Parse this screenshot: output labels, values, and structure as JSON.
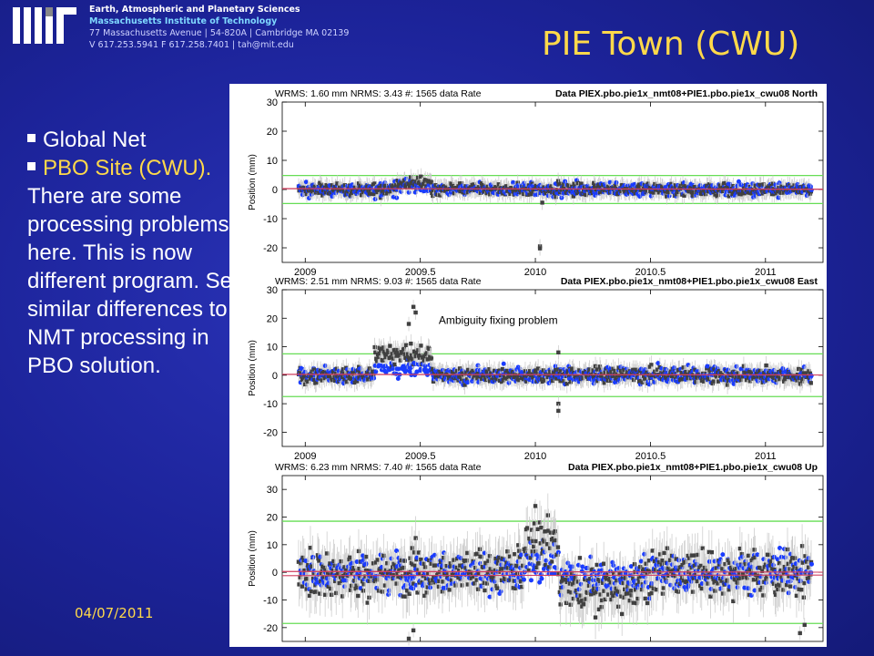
{
  "header": {
    "department": "Earth, Atmospheric and Planetary Sciences",
    "institute": "Massachusetts Institute of Technology",
    "address": "77 Massachusetts Avenue | 54-820A | Cambridge MA 02139",
    "contact": "V 617.253.5941 F 617.258.7401 | tah@mit.edu"
  },
  "slide": {
    "title": "PIE Town (CWU)",
    "date": "04/07/2011",
    "bullets": [
      {
        "lead": "Global Net",
        "rest": ""
      },
      {
        "lead": "PBO Site (CWU).",
        "rest": " There are some processing problems here. This is now different program. See similar differences to NMT processing in PBO solution."
      }
    ]
  },
  "colors": {
    "background": "#1c2399",
    "title": "#ffd94a",
    "series_a": "#404040",
    "series_b": "#1a3cff",
    "bounds": "#66dd55",
    "fit": "#d04060",
    "errorbar": "#c8c8c8"
  },
  "chart_data": [
    {
      "type": "scatter",
      "component": "North",
      "stats": "WRMS:   1.60 mm NRMS:  3.43 #:  1565 data  Rate",
      "title": "Data PIEX.pbo.pie1x_nmt08+PIE1.pbo.pie1x_cwu08 North",
      "ylabel": "Position (mm)",
      "xlim": [
        2008.9,
        2011.25
      ],
      "ylim": [
        -25,
        30
      ],
      "xticks": [
        2009,
        2009.5,
        2010,
        2010.5,
        2011
      ],
      "xtick_labels": [
        "2009",
        "2009.5",
        "2010",
        "2010.5",
        "2011"
      ],
      "yticks": [
        -20,
        -10,
        0,
        10,
        20,
        30
      ],
      "bounds": [
        -4.8,
        4.8
      ],
      "noise": [
        1.4,
        1.6
      ],
      "outliers": [
        {
          "x": 2010.02,
          "y": -19.5
        },
        {
          "x": 2010.02,
          "y": -20.2
        },
        {
          "x": 2010.03,
          "y": -4.5
        }
      ],
      "bumps": [
        {
          "x0": 2009.4,
          "x1": 2009.55,
          "dy": 2.5
        }
      ],
      "annotation": ""
    },
    {
      "type": "scatter",
      "component": "East",
      "stats": "WRMS:   2.51 mm NRMS:  9.03 #:  1565 data  Rate",
      "title": "Data PIEX.pbo.pie1x_nmt08+PIE1.pbo.pie1x_cwu08 East",
      "ylabel": "Position (mm)",
      "xlim": [
        2008.9,
        2011.25
      ],
      "ylim": [
        -25,
        30
      ],
      "xticks": [
        2009,
        2009.5,
        2010,
        2010.5,
        2011
      ],
      "xtick_labels": [
        "2009",
        "2009.5",
        "2010",
        "2010.5",
        "2011"
      ],
      "yticks": [
        -20,
        -10,
        0,
        10,
        20,
        30
      ],
      "bounds": [
        -7.5,
        7.5
      ],
      "noise": [
        1.8,
        2.0
      ],
      "outliers": [
        {
          "x": 2009.47,
          "y": 24
        },
        {
          "x": 2009.48,
          "y": 22
        },
        {
          "x": 2009.45,
          "y": 18
        },
        {
          "x": 2010.1,
          "y": -10
        },
        {
          "x": 2010.1,
          "y": -12.5
        },
        {
          "x": 2010.1,
          "y": 8
        }
      ],
      "bumps": [
        {
          "x0": 2009.3,
          "x1": 2009.55,
          "dy": 8
        }
      ],
      "annotation": "Ambiguity fixing problem"
    },
    {
      "type": "scatter",
      "component": "Up",
      "stats": "WRMS:   6.23 mm NRMS:  7.40 #:  1565 data  Rate",
      "title": "Data PIEX.pbo.pie1x_nmt08+PIE1.pbo.pie1x_cwu08 Up",
      "ylabel": "Position (mm)",
      "xlim": [
        2008.9,
        2011.25
      ],
      "ylim": [
        -25,
        35
      ],
      "xticks": [
        2009,
        2009.5,
        2010,
        2010.5,
        2011
      ],
      "xtick_labels": [
        "2009",
        "2009.5",
        "2010",
        "2010.5",
        "2011"
      ],
      "yticks": [
        -20,
        -10,
        0,
        10,
        20,
        30
      ],
      "bounds": [
        -18.5,
        18.5
      ],
      "noise": [
        6.0,
        5.0
      ],
      "outliers": [
        {
          "x": 2009.45,
          "y": -24
        },
        {
          "x": 2009.47,
          "y": -21
        },
        {
          "x": 2011.15,
          "y": -22
        },
        {
          "x": 2011.17,
          "y": -19
        },
        {
          "x": 2010.0,
          "y": 24
        }
      ],
      "bumps": [
        {
          "x0": 2009.95,
          "x1": 2010.1,
          "dy": 12
        },
        {
          "x0": 2010.1,
          "x1": 2010.45,
          "dy": -6
        }
      ],
      "annotation": ""
    }
  ]
}
